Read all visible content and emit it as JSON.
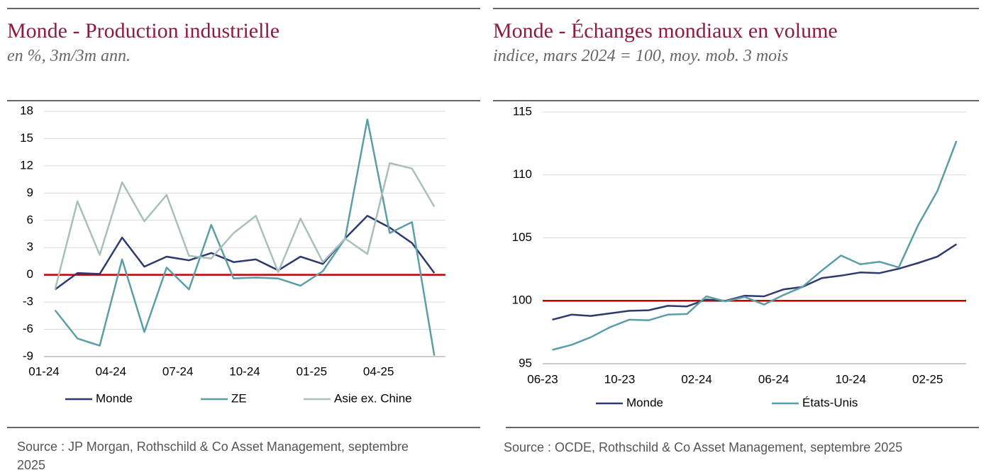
{
  "chart_data": [
    {
      "type": "line",
      "title": "Monde - Production industrielle",
      "subtitle": "en %, 3m/3m ann.",
      "categories": [
        "01-24",
        null,
        null,
        "04-24",
        null,
        null,
        "07-24",
        null,
        null,
        "10-24",
        null,
        null,
        "01-25",
        null,
        null,
        "04-25",
        null,
        null
      ],
      "series": [
        {
          "name": "Monde",
          "color": "#2e3a6e",
          "values": [
            -1.6,
            0.2,
            0.1,
            4.1,
            0.9,
            2.0,
            1.6,
            2.4,
            1.4,
            1.7,
            0.5,
            2.0,
            1.2,
            4.0,
            6.5,
            5.2,
            3.5,
            0.2
          ]
        },
        {
          "name": "ZE",
          "color": "#5b9ea6",
          "values": [
            -3.9,
            -7.0,
            -7.8,
            1.7,
            -6.3,
            0.8,
            -1.6,
            5.5,
            -0.4,
            -0.3,
            -0.4,
            -1.2,
            0.4,
            4.0,
            17.1,
            4.6,
            5.8,
            -8.9
          ]
        },
        {
          "name": "Asie ex. Chine",
          "color": "#a8c0bc",
          "values": [
            -1.6,
            8.1,
            2.2,
            10.2,
            5.9,
            8.8,
            2.1,
            1.8,
            4.6,
            6.5,
            0.3,
            6.2,
            1.4,
            4.0,
            2.3,
            12.3,
            11.7,
            7.5
          ]
        }
      ],
      "ylim": [
        -9,
        18
      ],
      "yticks": [
        -9,
        -6,
        -3,
        0,
        3,
        6,
        9,
        12,
        15,
        18
      ],
      "grid": true,
      "reference_line": {
        "value": 0,
        "color": "#c00000"
      },
      "legend": "bottom",
      "source": "Source : JP Morgan, Rothschild & Co Asset Management, septembre 2025"
    },
    {
      "type": "line",
      "title": "Monde - Échanges mondiaux en volume",
      "subtitle": "indice, mars 2024 = 100, moy. mob. 3 mois",
      "categories": [
        "06-23",
        null,
        null,
        null,
        "10-23",
        null,
        null,
        null,
        "02-24",
        null,
        null,
        null,
        "06-24",
        null,
        null,
        null,
        "10-24",
        null,
        null,
        null,
        "02-25",
        null
      ],
      "series": [
        {
          "name": "Monde",
          "color": "#2e3a6e",
          "values": [
            98.5,
            98.9,
            98.8,
            99.0,
            99.2,
            99.25,
            99.6,
            99.55,
            100.1,
            100.0,
            100.4,
            100.35,
            100.9,
            101.1,
            101.8,
            102.0,
            102.25,
            102.2,
            102.55,
            103.0,
            103.5,
            104.5
          ]
        },
        {
          "name": "États-Unis",
          "color": "#5b9ea6",
          "values": [
            96.1,
            96.5,
            97.1,
            97.9,
            98.5,
            98.45,
            98.9,
            98.95,
            100.35,
            99.95,
            100.3,
            99.7,
            100.45,
            101.1,
            102.4,
            103.6,
            102.9,
            103.1,
            102.65,
            106.0,
            108.7,
            112.7
          ]
        }
      ],
      "ylim": [
        95,
        115
      ],
      "yticks": [
        95,
        100,
        105,
        110,
        115
      ],
      "grid": true,
      "reference_line": {
        "value": 100,
        "color": "#c00000"
      },
      "legend": "bottom",
      "source": "Source : OCDE, Rothschild & Co Asset Management, septembre 2025"
    }
  ]
}
